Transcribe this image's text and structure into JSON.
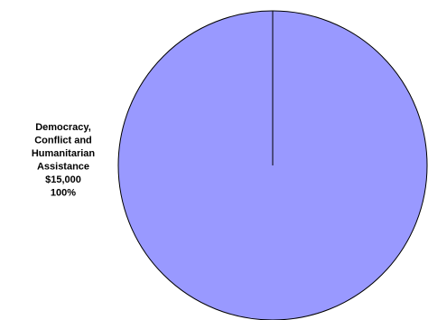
{
  "chart_data": {
    "type": "pie",
    "title": "",
    "slices": [
      {
        "label_lines": [
          "Democracy,",
          "Conflict and",
          "Humanitarian",
          "Assistance"
        ],
        "value": 15000,
        "value_label": "$15,000",
        "percent_label": "100%",
        "color": "#9999ff"
      }
    ],
    "legend": "none",
    "outline_color": "#000000"
  }
}
